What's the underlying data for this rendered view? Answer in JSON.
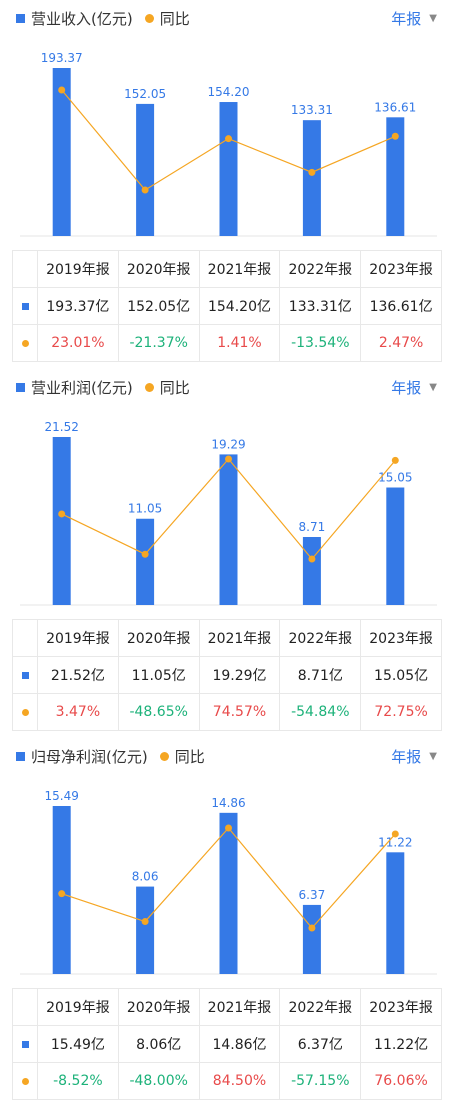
{
  "sections": [
    {
      "legend_bar": "营业收入(亿元)",
      "legend_line": "同比",
      "period": "年报",
      "years": [
        "2019年报",
        "2020年报",
        "2021年报",
        "2022年报",
        "2023年报"
      ],
      "value_cells": [
        "193.37亿",
        "152.05亿",
        "154.20亿",
        "133.31亿",
        "136.61亿"
      ],
      "pct_cells": [
        "23.01%",
        "-21.37%",
        "1.41%",
        "-13.54%",
        "2.47%"
      ]
    },
    {
      "legend_bar": "营业利润(亿元)",
      "legend_line": "同比",
      "period": "年报",
      "years": [
        "2019年报",
        "2020年报",
        "2021年报",
        "2022年报",
        "2023年报"
      ],
      "value_cells": [
        "21.52亿",
        "11.05亿",
        "19.29亿",
        "8.71亿",
        "15.05亿"
      ],
      "pct_cells": [
        "3.47%",
        "-48.65%",
        "74.57%",
        "-54.84%",
        "72.75%"
      ]
    },
    {
      "legend_bar": "归母净利润(亿元)",
      "legend_line": "同比",
      "period": "年报",
      "years": [
        "2019年报",
        "2020年报",
        "2021年报",
        "2022年报",
        "2023年报"
      ],
      "value_cells": [
        "15.49亿",
        "8.06亿",
        "14.86亿",
        "6.37亿",
        "11.22亿"
      ],
      "pct_cells": [
        "-8.52%",
        "-48.00%",
        "84.50%",
        "-57.15%",
        "76.06%"
      ]
    }
  ],
  "chart_data": [
    {
      "type": "bar",
      "categories": [
        "2019年报",
        "2020年报",
        "2021年报",
        "2022年报",
        "2023年报"
      ],
      "series": [
        {
          "name": "营业收入(亿元)",
          "values": [
            193.37,
            152.05,
            154.2,
            133.31,
            136.61
          ]
        },
        {
          "name": "同比",
          "values": [
            23.01,
            -21.37,
            1.41,
            -13.54,
            2.47
          ]
        }
      ],
      "legend": "top-left",
      "colors": {
        "bar": "#3579e6",
        "line": "#f5a623",
        "positive": "#e84a4a",
        "negative": "#1db27a"
      }
    },
    {
      "type": "bar",
      "categories": [
        "2019年报",
        "2020年报",
        "2021年报",
        "2022年报",
        "2023年报"
      ],
      "series": [
        {
          "name": "营业利润(亿元)",
          "values": [
            21.52,
            11.05,
            19.29,
            8.71,
            15.05
          ]
        },
        {
          "name": "同比",
          "values": [
            3.47,
            -48.65,
            74.57,
            -54.84,
            72.75
          ]
        }
      ],
      "legend": "top-left",
      "colors": {
        "bar": "#3579e6",
        "line": "#f5a623",
        "positive": "#e84a4a",
        "negative": "#1db27a"
      }
    },
    {
      "type": "bar",
      "categories": [
        "2019年报",
        "2020年报",
        "2021年报",
        "2022年报",
        "2023年报"
      ],
      "series": [
        {
          "name": "归母净利润(亿元)",
          "values": [
            15.49,
            8.06,
            14.86,
            6.37,
            11.22
          ]
        },
        {
          "name": "同比",
          "values": [
            -8.52,
            -48.0,
            84.5,
            -57.15,
            76.06
          ]
        }
      ],
      "legend": "top-left",
      "colors": {
        "bar": "#3579e6",
        "line": "#f5a623",
        "positive": "#e84a4a",
        "negative": "#1db27a"
      }
    }
  ]
}
